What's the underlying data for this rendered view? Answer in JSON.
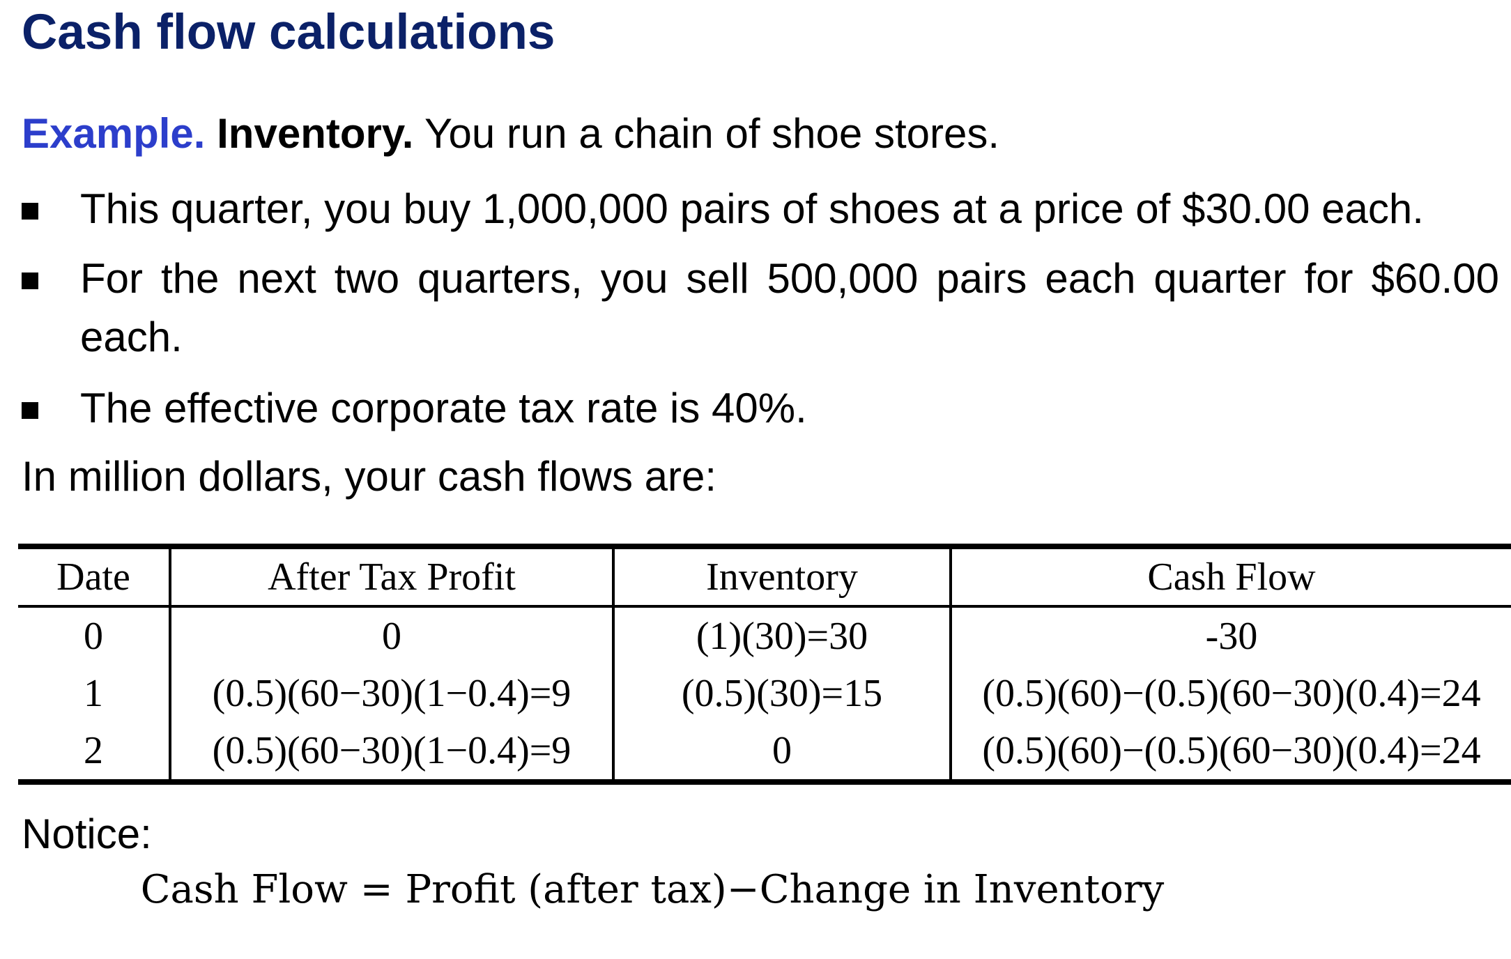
{
  "title": "Cash flow calculations",
  "intro": {
    "example_label": "Example.",
    "topic_label": "Inventory.",
    "text": "You run a chain of shoe stores."
  },
  "bullets": [
    "This quarter, you buy 1,000,000 pairs of shoes at a price of $30.00 each.",
    "For the next two quarters, you sell 500,000 pairs each quarter for $60.00 each.",
    "The effective corporate tax rate is 40%."
  ],
  "lead_in": "In million dollars, your cash flows are:",
  "table": {
    "headers": [
      "Date",
      "After Tax Profit",
      "Inventory",
      "Cash Flow"
    ],
    "rows": [
      [
        "0",
        "0",
        "(1)(30)=30",
        "-30"
      ],
      [
        "1",
        "(0.5)(60−30)(1−0.4)=9",
        "(0.5)(30)=15",
        "(0.5)(60)−(0.5)(60−30)(0.4)=24"
      ],
      [
        "2",
        "(0.5)(60−30)(1−0.4)=9",
        "0",
        "(0.5)(60)−(0.5)(60−30)(0.4)=24"
      ]
    ]
  },
  "notice_label": "Notice:",
  "formula": "Cash Flow = Profit (after tax)−Change in Inventory",
  "colors": {
    "title": "#0b2168",
    "example_label": "#2c3ecb",
    "text": "#000000"
  }
}
